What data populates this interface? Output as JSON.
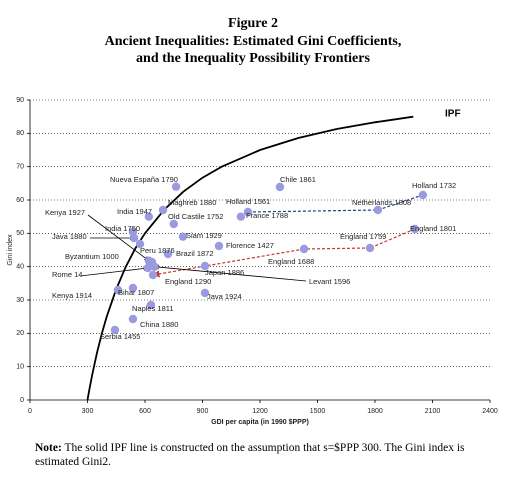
{
  "chart_data": {
    "type": "scatter",
    "title": "Figure 2",
    "subtitle": [
      "Ancient Inequalities: Estimated Gini Coefficients,",
      "and the Inequality Possibility Frontiers"
    ],
    "x_label": "GDI per capita (in 1990 $PPP)",
    "y_label": "Gini index",
    "xlim": [
      0,
      2400
    ],
    "xticks": [
      0,
      300,
      600,
      900,
      1200,
      1500,
      1800,
      2100,
      2400
    ],
    "ylim": [
      0,
      90
    ],
    "yticks": [
      0,
      10,
      20,
      30,
      40,
      50,
      60,
      70,
      80,
      90
    ],
    "grid": true,
    "points": {
      "color": "#9a9ae0",
      "labels": [
        "Chile 1861",
        "Holland 1732",
        "Holland 1561",
        "Netherlands 1808",
        "France 1788",
        "England 1801",
        "England 1759",
        "England 1688",
        "Nueva España 1790",
        "Maghreb 1880",
        "India 1947",
        "Old Castile 1752",
        "Siam 1929",
        "India 1750",
        "Java 1880",
        "Peru 1876",
        "Brazil 1872",
        "Florence 1427",
        "Kenya 1927",
        "Byzantium 1000",
        "Japan 1886",
        "Rome 14",
        "England 1290",
        "Levant 1596",
        "Bihar 1807",
        "Kenya 1914",
        "Java 1924",
        "Naples 1811",
        "China 1880",
        "Serbia 1455"
      ],
      "x": [
        1304,
        2050,
        1137,
        1815,
        1100,
        2008,
        1774,
        1430,
        762,
        694,
        620,
        750,
        798,
        537,
        543,
        574,
        720,
        986,
        620,
        636,
        913,
        615,
        642,
        650,
        537,
        459,
        913,
        631,
        537,
        443
      ],
      "values": [
        63.9,
        61.5,
        56.4,
        57,
        55,
        51.3,
        45.6,
        45.3,
        64,
        57,
        55,
        52.8,
        49,
        50.4,
        48.6,
        46.8,
        43.8,
        46.2,
        41.8,
        41.4,
        40.2,
        39.6,
        37.5,
        40,
        33.6,
        33,
        32.1,
        28.5,
        24.3,
        21
      ]
    },
    "ipf": {
      "label": "IPF",
      "color": "#000000",
      "x": [
        300,
        310,
        325,
        350,
        375,
        400,
        450,
        500,
        550,
        600,
        700,
        800,
        900,
        1000,
        1200,
        1400,
        1600,
        1800,
        2000
      ],
      "values": [
        0,
        3.2,
        7.7,
        14.3,
        20,
        25,
        33.3,
        40,
        45.5,
        50,
        57.1,
        62.5,
        66.7,
        70,
        75,
        78.6,
        81.3,
        83.3,
        85
      ]
    },
    "note_label": "Note:",
    "note": "The solid IPF line is constructed on the assumption that s=$PPP 300. The Gini index is estimated Gini2."
  }
}
